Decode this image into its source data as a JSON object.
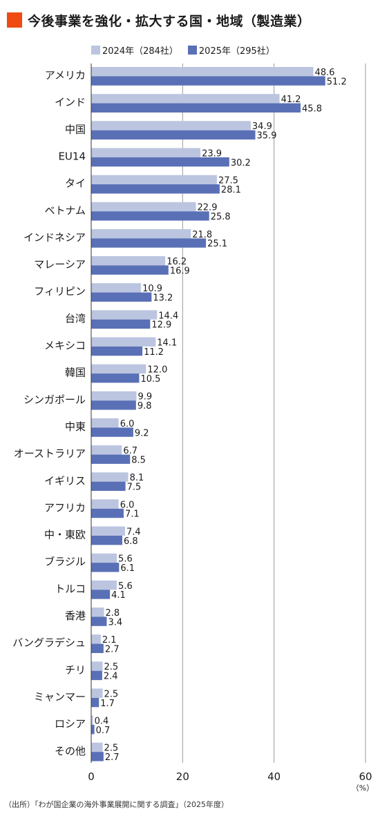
{
  "title": "今後事業を強化・拡大する国・地域（製造業）",
  "colors": {
    "title_mark": "#ee4a12",
    "series_2024": "#bcc5e0",
    "series_2025": "#5a70b6",
    "grid": "#999999"
  },
  "chart_data": {
    "type": "bar",
    "orientation": "horizontal",
    "categories": [
      "アメリカ",
      "インド",
      "中国",
      "EU14",
      "タイ",
      "ベトナム",
      "インドネシア",
      "マレーシア",
      "フィリピン",
      "台湾",
      "メキシコ",
      "韓国",
      "シンガポール",
      "中東",
      "オーストラリア",
      "イギリス",
      "アフリカ",
      "中・東欧",
      "ブラジル",
      "トルコ",
      "香港",
      "バングラデシュ",
      "チリ",
      "ミャンマー",
      "ロシア",
      "その他"
    ],
    "series": [
      {
        "name": "2024年（284社）",
        "values": [
          "48.6",
          "41.2",
          "34.9",
          "23.9",
          "27.5",
          "22.9",
          "21.8",
          "16.2",
          "10.9",
          "14.4",
          "14.1",
          "12.0",
          "9.9",
          "6.0",
          "6.7",
          "8.1",
          "6.0",
          "7.4",
          "5.6",
          "5.6",
          "2.8",
          "2.1",
          "2.5",
          "2.5",
          "0.4",
          "2.5"
        ]
      },
      {
        "name": "2025年（295社）",
        "values": [
          "51.2",
          "45.8",
          "35.9",
          "30.2",
          "28.1",
          "25.8",
          "25.1",
          "16.9",
          "13.2",
          "12.9",
          "11.2",
          "10.5",
          "9.8",
          "9.2",
          "8.5",
          "7.5",
          "7.1",
          "6.8",
          "6.1",
          "4.1",
          "3.4",
          "2.7",
          "2.4",
          "1.7",
          "0.7",
          "2.7"
        ]
      }
    ],
    "xticks": [
      "0",
      "20",
      "40",
      "60"
    ],
    "xlim": [
      0,
      60
    ],
    "unit": "（%）",
    "grid": true,
    "legend_position": "top"
  },
  "source": "（出所）「わが国企業の海外事業展開に関する調査」（2025年度）"
}
